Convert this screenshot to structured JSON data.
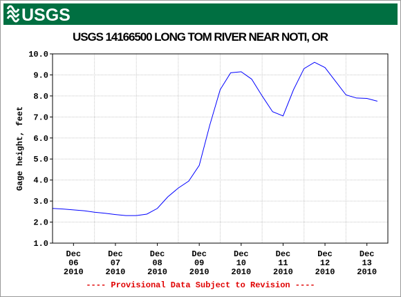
{
  "header": {
    "logo": "USGS"
  },
  "chart_data": {
    "type": "line",
    "title": "USGS 14166500 LONG TOM RIVER NEAR NOTI, OR",
    "ylabel": "Gage height, feet",
    "annotation": "---- Provisional Data Subject to Revision ----",
    "x": [
      "2010-12-06T00:00",
      "2010-12-06T06:00",
      "2010-12-06T12:00",
      "2010-12-06T18:00",
      "2010-12-07T00:00",
      "2010-12-07T06:00",
      "2010-12-07T12:00",
      "2010-12-07T18:00",
      "2010-12-08T00:00",
      "2010-12-08T06:00",
      "2010-12-08T12:00",
      "2010-12-08T18:00",
      "2010-12-09T00:00",
      "2010-12-09T06:00",
      "2010-12-09T12:00",
      "2010-12-09T18:00",
      "2010-12-10T00:00",
      "2010-12-10T06:00",
      "2010-12-10T12:00",
      "2010-12-10T18:00",
      "2010-12-11T00:00",
      "2010-12-11T06:00",
      "2010-12-11T12:00",
      "2010-12-11T18:00",
      "2010-12-12T00:00",
      "2010-12-12T06:00",
      "2010-12-12T12:00",
      "2010-12-12T18:00",
      "2010-12-13T00:00",
      "2010-12-13T06:00",
      "2010-12-13T12:00",
      "2010-12-13T18:00"
    ],
    "series": [
      {
        "name": "Gage height",
        "color": "#0000ff",
        "values": [
          2.65,
          2.62,
          2.58,
          2.54,
          2.47,
          2.42,
          2.36,
          2.31,
          2.31,
          2.38,
          2.65,
          3.2,
          3.62,
          3.95,
          4.7,
          6.6,
          8.3,
          9.1,
          9.15,
          8.8,
          8.0,
          7.25,
          7.05,
          8.3,
          9.3,
          9.6,
          9.35,
          8.7,
          8.05,
          7.9,
          7.88,
          7.75
        ]
      }
    ],
    "xlim": [
      "2010-12-06T00:00",
      "2010-12-14T00:00"
    ],
    "xgrid": [
      "2010-12-07T00:00",
      "2010-12-08T00:00",
      "2010-12-09T00:00",
      "2010-12-10T00:00",
      "2010-12-11T00:00",
      "2010-12-12T00:00",
      "2010-12-13T00:00"
    ],
    "xticks": [
      {
        "value": "2010-12-06T12:00",
        "label": "Dec\n06\n2010"
      },
      {
        "value": "2010-12-07T12:00",
        "label": "Dec\n07\n2010"
      },
      {
        "value": "2010-12-08T12:00",
        "label": "Dec\n08\n2010"
      },
      {
        "value": "2010-12-09T12:00",
        "label": "Dec\n09\n2010"
      },
      {
        "value": "2010-12-10T12:00",
        "label": "Dec\n10\n2010"
      },
      {
        "value": "2010-12-11T12:00",
        "label": "Dec\n11\n2010"
      },
      {
        "value": "2010-12-12T12:00",
        "label": "Dec\n12\n2010"
      },
      {
        "value": "2010-12-13T12:00",
        "label": "Dec\n13\n2010"
      }
    ],
    "ylim": [
      1,
      10
    ],
    "yticks": [
      {
        "value": 1,
        "label": "1.0"
      },
      {
        "value": 2,
        "label": "2.0"
      },
      {
        "value": 3,
        "label": "3.0"
      },
      {
        "value": 4,
        "label": "4.0"
      },
      {
        "value": 5,
        "label": "5.0"
      },
      {
        "value": 6,
        "label": "6.0"
      },
      {
        "value": 7,
        "label": "7.0"
      },
      {
        "value": 8,
        "label": "8.0"
      },
      {
        "value": 9,
        "label": "9.0"
      },
      {
        "value": 10,
        "label": "10.0"
      }
    ],
    "grid": true
  }
}
